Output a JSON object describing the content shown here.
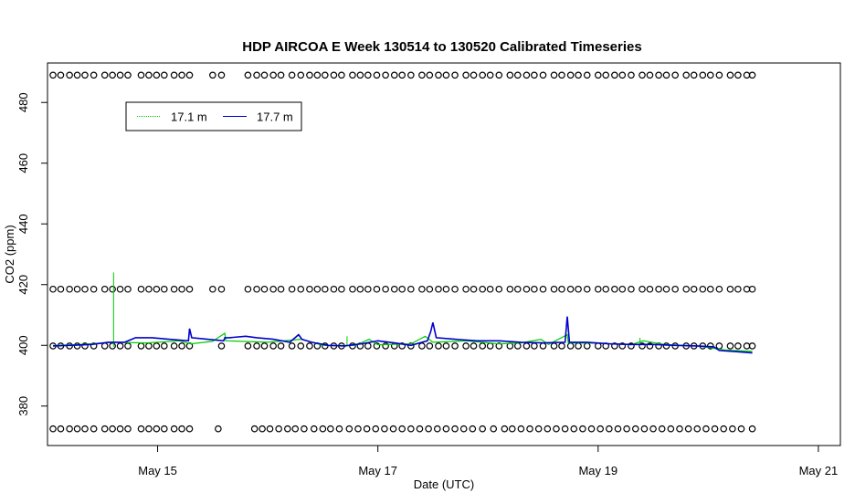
{
  "chart_data": {
    "type": "line",
    "title": "HDP AIRCOA E  Week 130514 to 130520  Calibrated Timeseries",
    "xlabel": "Date (UTC)",
    "ylabel": "CO2 (ppm)",
    "xlim": [
      14.0,
      21.2
    ],
    "ylim": [
      367,
      493
    ],
    "x_ticks": [
      {
        "value": 15,
        "label": "May 15"
      },
      {
        "value": 17,
        "label": "May 17"
      },
      {
        "value": 19,
        "label": "May 19"
      },
      {
        "value": 21,
        "label": "May 21"
      }
    ],
    "y_ticks": [
      {
        "value": 380,
        "label": "380"
      },
      {
        "value": 400,
        "label": "400"
      },
      {
        "value": 420,
        "label": "420"
      },
      {
        "value": 440,
        "label": "440"
      },
      {
        "value": 460,
        "label": "460"
      },
      {
        "value": 480,
        "label": "480"
      }
    ],
    "legend": {
      "position": "top-left"
    },
    "series": [
      {
        "name": "17.1 m",
        "color": "#00cc00",
        "points": [
          [
            14.05,
            400.0
          ],
          [
            14.3,
            400.3
          ],
          [
            14.6,
            401.0
          ],
          [
            14.9,
            400.8
          ],
          [
            15.2,
            401.5
          ],
          [
            15.3,
            400.5
          ],
          [
            15.5,
            401.3
          ],
          [
            15.61,
            404.0
          ],
          [
            15.62,
            401.5
          ],
          [
            16.0,
            401.0
          ],
          [
            16.3,
            402.0
          ],
          [
            16.5,
            400.0
          ],
          [
            16.8,
            400.0
          ],
          [
            16.92,
            402.0
          ],
          [
            17.0,
            400.2
          ],
          [
            17.3,
            400.5
          ],
          [
            17.43,
            403.0
          ],
          [
            17.5,
            401.0
          ],
          [
            17.8,
            401.5
          ],
          [
            18.1,
            400.5
          ],
          [
            18.3,
            400.8
          ],
          [
            18.48,
            402.0
          ],
          [
            18.55,
            400.3
          ],
          [
            18.72,
            403.5
          ],
          [
            18.73,
            400.8
          ],
          [
            19.0,
            400.7
          ],
          [
            19.3,
            400.2
          ],
          [
            19.41,
            401.5
          ],
          [
            19.6,
            400.3
          ],
          [
            19.9,
            399.8
          ],
          [
            20.15,
            398.5
          ],
          [
            20.4,
            398.0
          ]
        ],
        "spikes": [
          {
            "x": 14.6,
            "y_min": 399.5,
            "y_max": 424.0
          },
          {
            "x": 16.72,
            "y_min": 399.8,
            "y_max": 403.0
          },
          {
            "x": 19.38,
            "y_min": 400.0,
            "y_max": 402.5
          }
        ]
      },
      {
        "name": "17.7 m",
        "color": "#0000cc",
        "points": [
          [
            14.05,
            399.8
          ],
          [
            14.2,
            400.0
          ],
          [
            14.4,
            400.3
          ],
          [
            14.55,
            401.0
          ],
          [
            14.7,
            401.0
          ],
          [
            14.8,
            402.5
          ],
          [
            14.95,
            402.5
          ],
          [
            15.1,
            402.0
          ],
          [
            15.28,
            401.5
          ],
          [
            15.29,
            405.5
          ],
          [
            15.31,
            402.5
          ],
          [
            15.45,
            402.0
          ],
          [
            15.6,
            401.5
          ],
          [
            15.61,
            402.5
          ],
          [
            15.65,
            402.5
          ],
          [
            15.8,
            403.0
          ],
          [
            15.9,
            402.5
          ],
          [
            16.05,
            402.0
          ],
          [
            16.2,
            401.0
          ],
          [
            16.28,
            403.5
          ],
          [
            16.31,
            402.0
          ],
          [
            16.4,
            401.0
          ],
          [
            16.55,
            400.0
          ],
          [
            16.7,
            399.8
          ],
          [
            16.85,
            400.5
          ],
          [
            17.0,
            401.5
          ],
          [
            17.15,
            400.8
          ],
          [
            17.3,
            400.0
          ],
          [
            17.45,
            401.5
          ],
          [
            17.48,
            404.5
          ],
          [
            17.5,
            407.5
          ],
          [
            17.53,
            402.5
          ],
          [
            17.7,
            402.0
          ],
          [
            17.9,
            401.5
          ],
          [
            18.1,
            401.5
          ],
          [
            18.3,
            401.0
          ],
          [
            18.5,
            400.8
          ],
          [
            18.7,
            401.0
          ],
          [
            18.72,
            409.5
          ],
          [
            18.74,
            401.0
          ],
          [
            18.9,
            401.0
          ],
          [
            19.1,
            400.5
          ],
          [
            19.3,
            400.3
          ],
          [
            19.5,
            400.3
          ],
          [
            19.7,
            400.0
          ],
          [
            19.9,
            399.8
          ],
          [
            20.05,
            399.5
          ],
          [
            20.1,
            398.3
          ],
          [
            20.3,
            397.8
          ],
          [
            20.4,
            397.5
          ]
        ]
      }
    ],
    "calibration_levels": [
      {
        "y": 489.0,
        "x": [
          14.05,
          14.12,
          14.2,
          14.27,
          14.34,
          14.42,
          14.52,
          14.59,
          14.66,
          14.73,
          14.85,
          14.92,
          14.99,
          15.06,
          15.15,
          15.22,
          15.29,
          15.5,
          15.58,
          15.82,
          15.9,
          15.97,
          16.05,
          16.12,
          16.22,
          16.3,
          16.38,
          16.45,
          16.52,
          16.6,
          16.67,
          16.77,
          16.84,
          16.91,
          16.99,
          17.07,
          17.15,
          17.22,
          17.3,
          17.4,
          17.47,
          17.55,
          17.62,
          17.7,
          17.8,
          17.87,
          17.95,
          18.02,
          18.1,
          18.2,
          18.27,
          18.35,
          18.42,
          18.5,
          18.6,
          18.67,
          18.75,
          18.82,
          18.9,
          19.0,
          19.07,
          19.15,
          19.22,
          19.3,
          19.4,
          19.47,
          19.55,
          19.62,
          19.7,
          19.8,
          19.87,
          19.95,
          20.02,
          20.1,
          20.2,
          20.27,
          20.35,
          20.4
        ]
      },
      {
        "y": 418.5,
        "x": [
          14.05,
          14.12,
          14.2,
          14.27,
          14.34,
          14.42,
          14.52,
          14.59,
          14.66,
          14.73,
          14.85,
          14.92,
          14.99,
          15.06,
          15.15,
          15.22,
          15.29,
          15.5,
          15.58,
          15.82,
          15.9,
          15.97,
          16.05,
          16.12,
          16.22,
          16.3,
          16.38,
          16.45,
          16.52,
          16.6,
          16.67,
          16.77,
          16.84,
          16.91,
          16.99,
          17.07,
          17.15,
          17.22,
          17.3,
          17.4,
          17.47,
          17.55,
          17.62,
          17.7,
          17.8,
          17.87,
          17.95,
          18.02,
          18.1,
          18.2,
          18.27,
          18.35,
          18.42,
          18.5,
          18.6,
          18.67,
          18.75,
          18.82,
          18.9,
          19.0,
          19.07,
          19.15,
          19.22,
          19.3,
          19.4,
          19.47,
          19.55,
          19.62,
          19.7,
          19.8,
          19.87,
          19.95,
          20.02,
          20.1,
          20.2,
          20.27,
          20.35,
          20.4
        ]
      },
      {
        "y": 399.8,
        "x": [
          14.05,
          14.12,
          14.2,
          14.27,
          14.34,
          14.42,
          14.52,
          14.59,
          14.66,
          14.73,
          14.85,
          14.92,
          14.99,
          15.06,
          15.15,
          15.22,
          15.29,
          15.58,
          15.82,
          15.9,
          15.97,
          16.05,
          16.12,
          16.22,
          16.3,
          16.38,
          16.45,
          16.52,
          16.6,
          16.67,
          16.77,
          16.84,
          16.91,
          16.99,
          17.07,
          17.15,
          17.22,
          17.3,
          17.4,
          17.47,
          17.55,
          17.62,
          17.7,
          17.8,
          17.87,
          17.95,
          18.02,
          18.1,
          18.2,
          18.27,
          18.35,
          18.42,
          18.5,
          18.6,
          18.67,
          18.75,
          18.82,
          18.9,
          19.0,
          19.07,
          19.15,
          19.22,
          19.3,
          19.4,
          19.47,
          19.55,
          19.62,
          19.7,
          19.8,
          19.87,
          19.95,
          20.02,
          20.1,
          20.2,
          20.27,
          20.35,
          20.4
        ]
      },
      {
        "y": 372.5,
        "x": [
          14.05,
          14.12,
          14.2,
          14.27,
          14.34,
          14.42,
          14.52,
          14.59,
          14.66,
          14.73,
          14.85,
          14.92,
          14.99,
          15.06,
          15.15,
          15.22,
          15.29,
          15.55,
          15.88,
          15.95,
          16.02,
          16.1,
          16.18,
          16.25,
          16.33,
          16.42,
          16.5,
          16.57,
          16.65,
          16.74,
          16.82,
          16.9,
          16.98,
          17.06,
          17.14,
          17.22,
          17.3,
          17.38,
          17.46,
          17.54,
          17.62,
          17.7,
          17.78,
          17.86,
          17.95,
          18.05,
          18.15,
          18.22,
          18.3,
          18.38,
          18.46,
          18.54,
          18.62,
          18.7,
          18.78,
          18.86,
          18.94,
          19.02,
          19.1,
          19.18,
          19.26,
          19.34,
          19.42,
          19.5,
          19.58,
          19.66,
          19.74,
          19.82,
          19.9,
          19.98,
          20.06,
          20.14,
          20.22,
          20.3,
          20.4
        ]
      }
    ]
  }
}
